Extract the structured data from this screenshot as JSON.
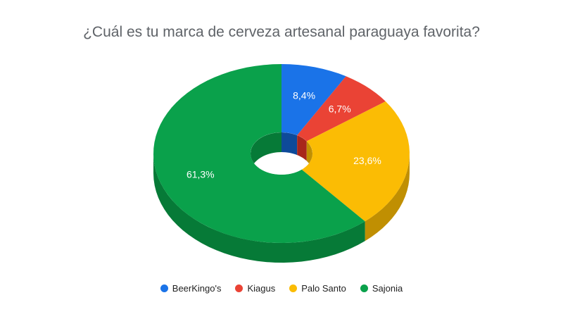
{
  "chart_data": {
    "type": "pie",
    "title": "¿Cuál es tu marca de cerveza artesanal paraguaya favorita?",
    "style": "3d-donut",
    "legend_position": "bottom",
    "slices": [
      {
        "label": "BeerKingo's",
        "value": 8.4,
        "display": "8,4%",
        "color": "#1a73e8",
        "side_color": "#0e4a99",
        "label_color": "#ffffff"
      },
      {
        "label": "Kiagus",
        "value": 6.7,
        "display": "6,7%",
        "color": "#ea4335",
        "side_color": "#a8261b",
        "label_color": "#ffffff"
      },
      {
        "label": "Palo Santo",
        "value": 23.6,
        "display": "23,6%",
        "color": "#fbbc04",
        "side_color": "#c08f02",
        "label_color": "#ffffff"
      },
      {
        "label": "Sajonia",
        "value": 61.3,
        "display": "61,3%",
        "color": "#0aa14b",
        "side_color": "#067a37",
        "label_color": "#ffffff"
      }
    ]
  }
}
